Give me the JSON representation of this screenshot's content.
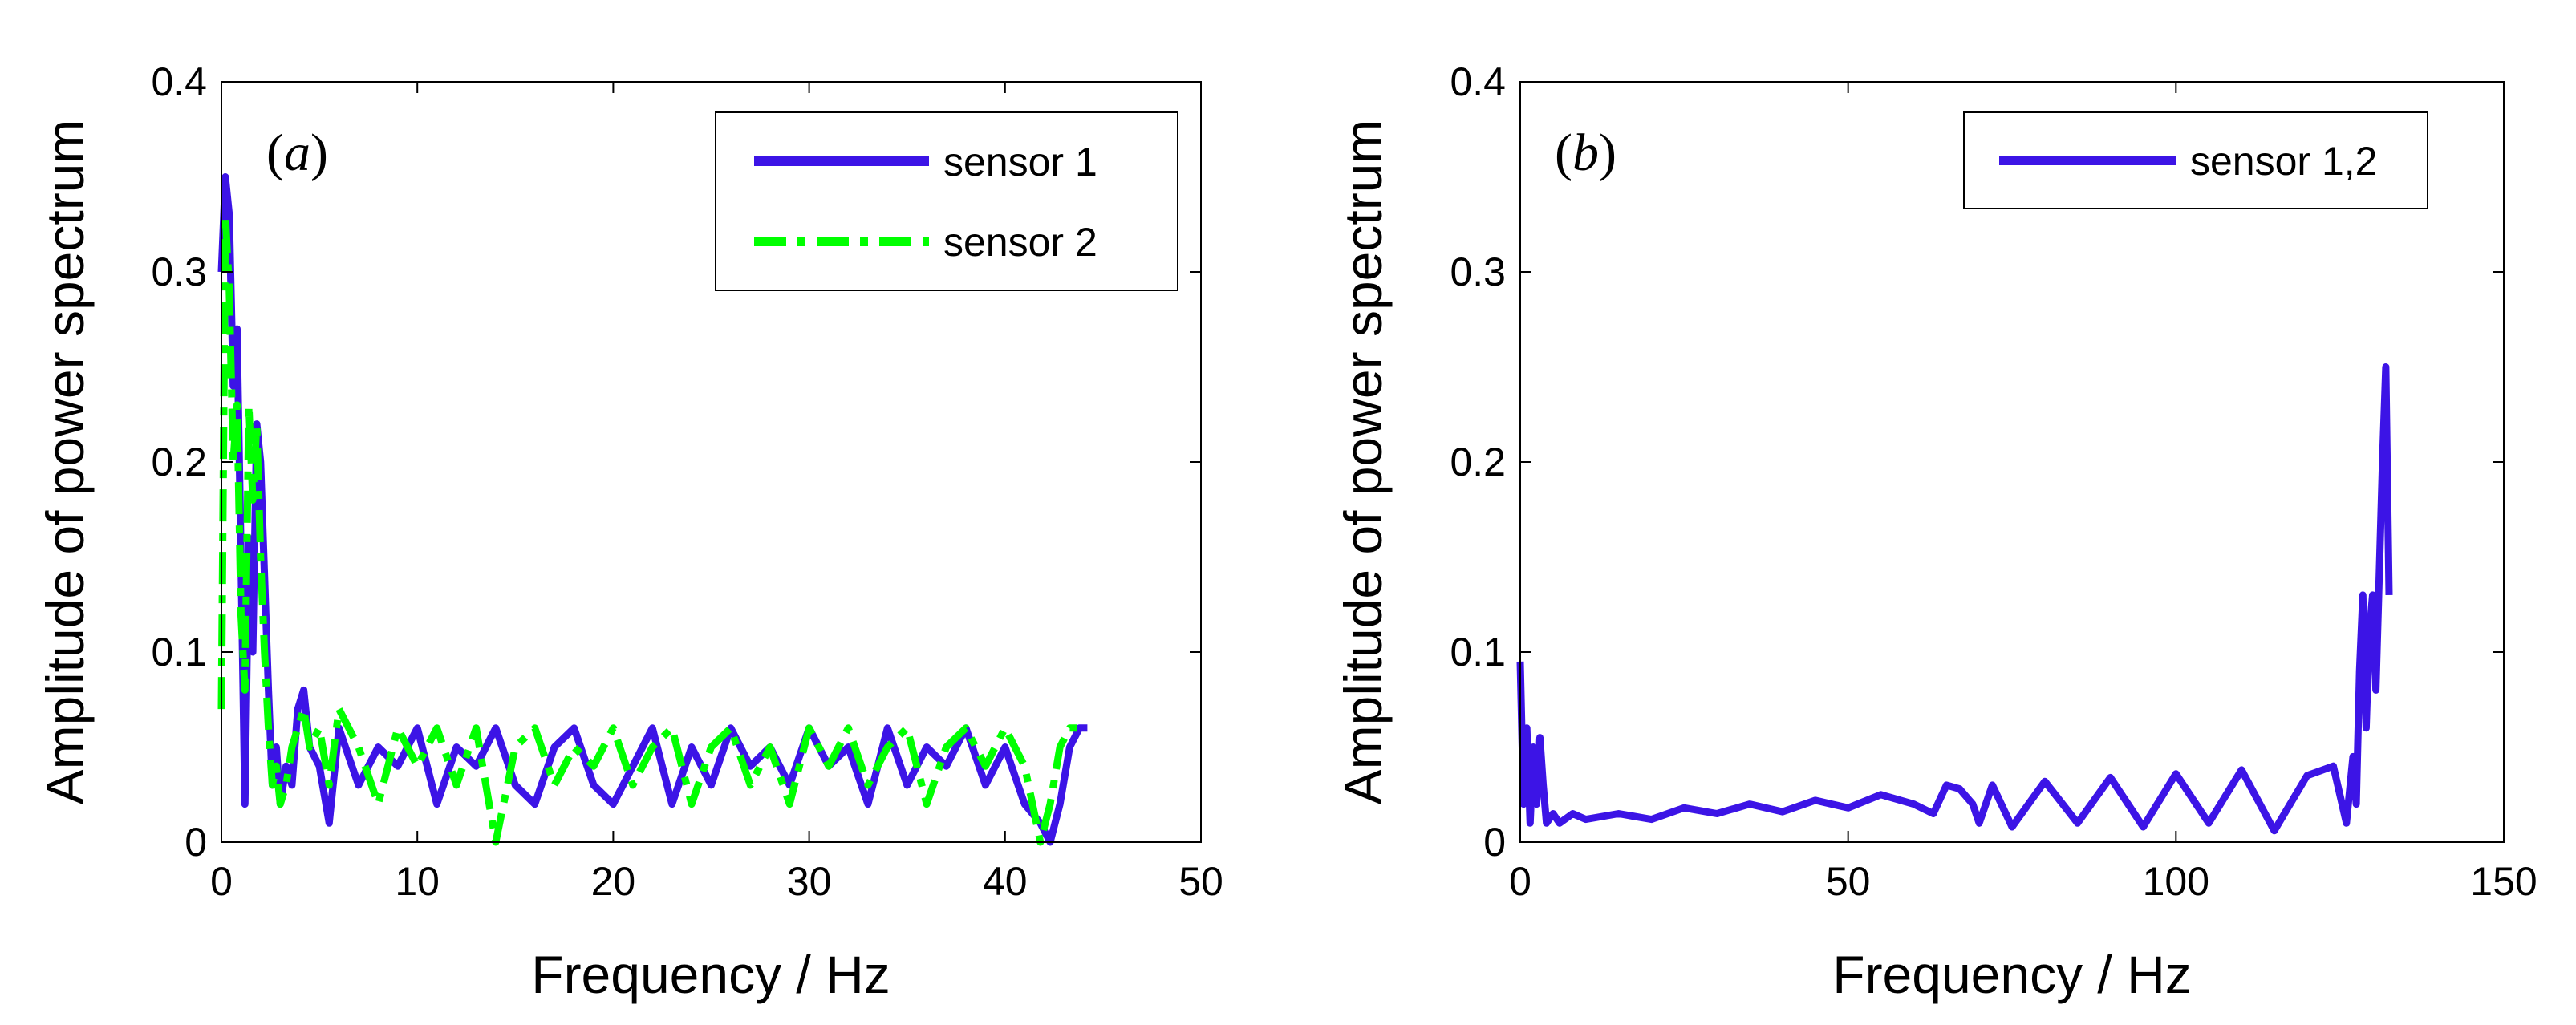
{
  "chart_data": [
    {
      "type": "line",
      "panel_label": "(a)",
      "panel_letter": "a",
      "xlabel": "Frequency / Hz",
      "ylabel": "Amplitude of power spectrum",
      "xlim": [
        0,
        50
      ],
      "ylim": [
        0,
        0.4
      ],
      "x_ticks": [
        0,
        10,
        20,
        30,
        40,
        50
      ],
      "y_ticks": [
        0,
        0.1,
        0.2,
        0.3,
        0.4
      ],
      "x_tick_labels": [
        "0",
        "10",
        "20",
        "30",
        "40",
        "50"
      ],
      "y_tick_labels": [
        "0",
        "0.1",
        "0.2",
        "0.3",
        "0.4"
      ],
      "legend_position": "top-right",
      "series": [
        {
          "name": "sensor 1",
          "color": "#3c14e6",
          "style": "solid",
          "x": [
            0,
            0.2,
            0.4,
            0.6,
            0.8,
            1.0,
            1.2,
            1.4,
            1.6,
            1.8,
            2.0,
            2.2,
            2.4,
            2.6,
            2.8,
            3.0,
            3.3,
            3.6,
            3.9,
            4.2,
            4.5,
            5.0,
            5.5,
            6.0,
            7.0,
            8.0,
            9.0,
            10.0,
            11.0,
            12.0,
            13.0,
            14.0,
            15.0,
            16.0,
            17.0,
            18.0,
            19.0,
            20.0,
            21.0,
            22.0,
            23.0,
            24.0,
            25.0,
            26.0,
            27.0,
            28.0,
            29.0,
            30.0,
            31.0,
            32.0,
            33.0,
            34.0,
            35.0,
            36.0,
            37.0,
            38.0,
            39.0,
            40.0,
            41.0,
            41.8,
            42.3,
            42.8,
            43.3,
            43.8,
            44.2
          ],
          "y": [
            0.3,
            0.35,
            0.33,
            0.24,
            0.27,
            0.15,
            0.02,
            0.16,
            0.1,
            0.22,
            0.2,
            0.14,
            0.08,
            0.03,
            0.05,
            0.02,
            0.04,
            0.03,
            0.07,
            0.08,
            0.05,
            0.04,
            0.01,
            0.06,
            0.03,
            0.05,
            0.04,
            0.06,
            0.02,
            0.05,
            0.04,
            0.06,
            0.03,
            0.02,
            0.05,
            0.06,
            0.03,
            0.02,
            0.04,
            0.06,
            0.02,
            0.05,
            0.03,
            0.06,
            0.04,
            0.05,
            0.03,
            0.06,
            0.04,
            0.05,
            0.02,
            0.06,
            0.03,
            0.05,
            0.04,
            0.06,
            0.03,
            0.05,
            0.02,
            0.01,
            0.0,
            0.02,
            0.05,
            0.06,
            0.06
          ]
        },
        {
          "name": "sensor 2",
          "color": "#00ff00",
          "style": "dashdot",
          "x": [
            0,
            0.2,
            0.4,
            0.6,
            0.8,
            1.0,
            1.2,
            1.4,
            1.6,
            1.8,
            2.0,
            2.2,
            2.4,
            2.6,
            2.8,
            3.0,
            3.3,
            3.6,
            3.9,
            4.2,
            4.5,
            5.0,
            5.5,
            6.0,
            7.0,
            8.0,
            9.0,
            10.0,
            11.0,
            12.0,
            13.0,
            14.0,
            15.0,
            16.0,
            17.0,
            18.0,
            19.0,
            20.0,
            21.0,
            22.0,
            23.0,
            24.0,
            25.0,
            26.0,
            27.0,
            28.0,
            29.0,
            30.0,
            31.0,
            32.0,
            33.0,
            34.0,
            35.0,
            36.0,
            37.0,
            38.0,
            39.0,
            40.0,
            41.0,
            41.8,
            42.3,
            42.8,
            43.3,
            43.8,
            44.2
          ],
          "y": [
            0.07,
            0.33,
            0.29,
            0.2,
            0.23,
            0.12,
            0.08,
            0.23,
            0.18,
            0.22,
            0.15,
            0.1,
            0.06,
            0.03,
            0.04,
            0.02,
            0.03,
            0.05,
            0.06,
            0.07,
            0.05,
            0.06,
            0.03,
            0.07,
            0.05,
            0.02,
            0.06,
            0.04,
            0.06,
            0.03,
            0.06,
            0.0,
            0.05,
            0.06,
            0.03,
            0.05,
            0.04,
            0.06,
            0.03,
            0.05,
            0.06,
            0.02,
            0.05,
            0.06,
            0.03,
            0.05,
            0.02,
            0.06,
            0.04,
            0.06,
            0.03,
            0.05,
            0.06,
            0.02,
            0.05,
            0.06,
            0.04,
            0.06,
            0.04,
            0.0,
            0.02,
            0.05,
            0.06,
            0.06,
            0.06
          ]
        }
      ]
    },
    {
      "type": "line",
      "panel_label": "(b)",
      "panel_letter": "b",
      "xlabel": "Frequency / Hz",
      "ylabel": "Amplitude of power spectrum",
      "xlim": [
        0,
        150
      ],
      "ylim": [
        0,
        0.4
      ],
      "x_ticks": [
        0,
        50,
        100,
        150
      ],
      "y_ticks": [
        0,
        0.1,
        0.2,
        0.3,
        0.4
      ],
      "x_tick_labels": [
        "0",
        "50",
        "100",
        "150"
      ],
      "y_tick_labels": [
        "0",
        "0.1",
        "0.2",
        "0.3",
        "0.4"
      ],
      "legend_position": "top-right",
      "series": [
        {
          "name": "sensor 1,2",
          "color": "#3c14e6",
          "style": "solid",
          "x": [
            0,
            0.5,
            1.0,
            1.5,
            2.0,
            2.5,
            3.0,
            3.5,
            4.0,
            5.0,
            6.0,
            8.0,
            10.0,
            15.0,
            20.0,
            25.0,
            30.0,
            35.0,
            40.0,
            45.0,
            50.0,
            55.0,
            60.0,
            63.0,
            65.0,
            67.0,
            69.0,
            70.0,
            72.0,
            75.0,
            80.0,
            85.0,
            90.0,
            95.0,
            100.0,
            105.0,
            110.0,
            115.0,
            120.0,
            124.0,
            126.0,
            127.0,
            127.5,
            128.0,
            128.5,
            129.0,
            129.5,
            130.0,
            130.5,
            131.0,
            131.5,
            132.0,
            132.5
          ],
          "y": [
            0.095,
            0.02,
            0.06,
            0.01,
            0.05,
            0.02,
            0.055,
            0.03,
            0.01,
            0.015,
            0.01,
            0.015,
            0.012,
            0.015,
            0.012,
            0.018,
            0.015,
            0.02,
            0.016,
            0.022,
            0.018,
            0.025,
            0.02,
            0.015,
            0.03,
            0.028,
            0.02,
            0.01,
            0.03,
            0.008,
            0.032,
            0.01,
            0.034,
            0.008,
            0.036,
            0.01,
            0.038,
            0.006,
            0.035,
            0.04,
            0.01,
            0.045,
            0.02,
            0.09,
            0.13,
            0.06,
            0.11,
            0.13,
            0.08,
            0.14,
            0.2,
            0.25,
            0.13
          ]
        }
      ]
    }
  ]
}
